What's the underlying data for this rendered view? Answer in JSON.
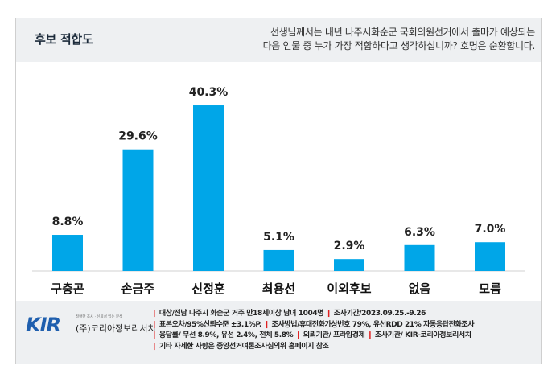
{
  "header": {
    "title": "후보 적합도",
    "question": "선생님께서는 내년 나주시화순군 국회의원선거에서 출마가 예상되는\n다음 인물 중 누가 가장 적합하다고 생각하십니까? 호명은 순환합니다."
  },
  "chart_data": {
    "type": "bar",
    "categories": [
      "구충곤",
      "손금주",
      "신정훈",
      "최용선",
      "이외후보",
      "없음",
      "모름"
    ],
    "values": [
      8.8,
      29.6,
      40.3,
      5.1,
      2.9,
      6.3,
      7.0
    ],
    "value_labels": [
      "8.8%",
      "29.6%",
      "40.3%",
      "5.1%",
      "2.9%",
      "6.3%",
      "7.0%"
    ],
    "ylim": [
      0,
      45
    ],
    "grid": false,
    "bar_color": "#00a6e8"
  },
  "footer": {
    "logo": {
      "mark": "KIR",
      "tagline": "정확한 조사 · 신뢰성 있는 분석",
      "name": "(주)코리아정보리서치"
    },
    "notes": [
      "대상/전남 나주시 화순군 거주 만18세이상 남녀 1004명",
      "조사기간/2023.09.25.-9.26",
      "표본오차/95%신뢰수준 ±3.1%P.",
      "조사방법/휴대전화가상번호 79%, 유선RDD 21% 자동응답전화조사",
      "응답률/ 무선 8.9%, 유선 2.4%, 전체 5.8%",
      "의뢰기관/ 프라임경제",
      "조사기관/ KIR-코리아정보리서치",
      "기타 자세한 사항은 중앙선거여론조사심의위 홈페이지 참조"
    ],
    "mark_color": "#e02020"
  }
}
